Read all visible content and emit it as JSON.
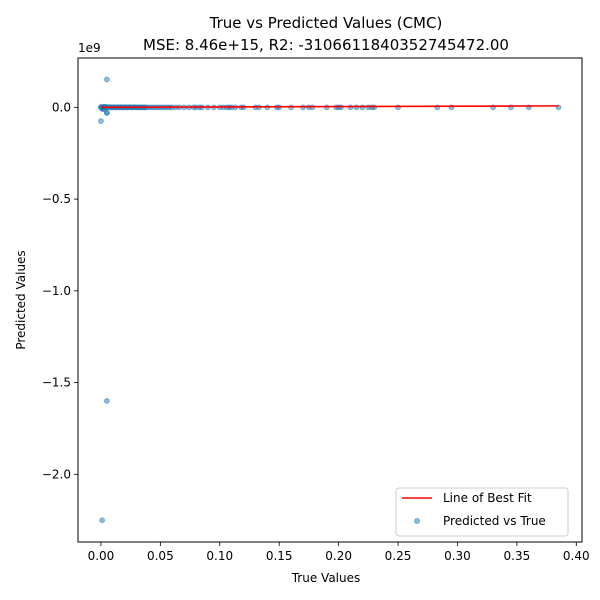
{
  "chart_data": {
    "type": "scatter",
    "title_line1": "True vs Predicted Values (CMC)",
    "title_line2": "MSE: 8.46e+15, R2: -3106611840352745472.00",
    "xlabel": "True Values",
    "ylabel": "Predicted Values",
    "y_offset_label": "1e9",
    "xlim": [
      -0.0193,
      0.4048
    ],
    "ylim": [
      -2.3687,
      0.2689
    ],
    "x_ticks": [
      0.0,
      0.05,
      0.1,
      0.15,
      0.2,
      0.25,
      0.3,
      0.35,
      0.4
    ],
    "x_tick_labels": [
      "0.00",
      "0.05",
      "0.10",
      "0.15",
      "0.20",
      "0.25",
      "0.30",
      "0.35",
      "0.40"
    ],
    "y_ticks": [
      0.0,
      -0.5,
      -1.0,
      -1.5,
      -2.0
    ],
    "y_tick_labels": [
      "0.0",
      "−0.5",
      "−1.0",
      "−1.5",
      "−2.0"
    ],
    "grid": false,
    "legend_position": "lower-right",
    "colors": {
      "points": "#1f77b4",
      "fit_line": "#ff0000"
    },
    "series": [
      {
        "name": "Predicted vs True",
        "kind": "scatter",
        "x": [
          0.0,
          0.0,
          0.001,
          0.002,
          0.003,
          0.004,
          0.005,
          0.005,
          0.005,
          0.001,
          0.0,
          0.002,
          0.003,
          0.004,
          0.006,
          0.007,
          0.008,
          0.009,
          0.01,
          0.011,
          0.012,
          0.013,
          0.014,
          0.015,
          0.016,
          0.017,
          0.018,
          0.019,
          0.02,
          0.021,
          0.022,
          0.023,
          0.024,
          0.025,
          0.026,
          0.027,
          0.028,
          0.029,
          0.03,
          0.031,
          0.032,
          0.033,
          0.034,
          0.035,
          0.036,
          0.037,
          0.038,
          0.04,
          0.042,
          0.044,
          0.046,
          0.048,
          0.05,
          0.052,
          0.054,
          0.056,
          0.058,
          0.06,
          0.063,
          0.066,
          0.07,
          0.074,
          0.078,
          0.08,
          0.083,
          0.085,
          0.09,
          0.095,
          0.1,
          0.103,
          0.106,
          0.108,
          0.11,
          0.113,
          0.118,
          0.12,
          0.13,
          0.133,
          0.14,
          0.148,
          0.15,
          0.16,
          0.17,
          0.175,
          0.178,
          0.19,
          0.198,
          0.2,
          0.202,
          0.21,
          0.215,
          0.22,
          0.225,
          0.228,
          0.23,
          0.25,
          0.283,
          0.295,
          0.33,
          0.345,
          0.36,
          0.385
        ],
        "y": [
          0.0,
          0.002,
          -0.003,
          0.004,
          -0.001,
          0.003,
          0.152,
          -0.03,
          -0.03,
          -0.008,
          -0.075,
          -0.01,
          0.002,
          -0.002,
          0.001,
          0.0,
          0.002,
          -0.001,
          0.0,
          0.001,
          0.0,
          -0.001,
          0.001,
          0.0,
          0.0,
          0.001,
          0.0,
          -0.001,
          0.001,
          0.0,
          0.0,
          0.0,
          0.001,
          0.0,
          0.0,
          0.0,
          0.001,
          0.0,
          0.0,
          0.0,
          0.0,
          0.0,
          0.0,
          0.0,
          0.0,
          0.0,
          0.0,
          0.0,
          0.0,
          0.0,
          0.0,
          0.0,
          0.0,
          0.0,
          0.0,
          0.0,
          0.0,
          0.0,
          0.0,
          0.0,
          0.0,
          0.0,
          0.0,
          0.0,
          0.0,
          0.0,
          0.0,
          0.0,
          0.0,
          0.0,
          0.0,
          0.0,
          0.0,
          0.0,
          0.0,
          0.0,
          0.0,
          0.0,
          0.0,
          0.0,
          0.0,
          0.0,
          0.0,
          0.0,
          0.0,
          0.0,
          0.0,
          0.0,
          0.0,
          0.0,
          0.0,
          0.0,
          0.0,
          0.0,
          0.0,
          0.0,
          0.0,
          0.0,
          0.0,
          0.0,
          0.0,
          0.0
        ],
        "outliers_x": [
          0.005,
          0.001
        ],
        "outliers_y": [
          -1.6,
          -2.25
        ]
      },
      {
        "name": "Line of Best Fit",
        "kind": "line",
        "x": [
          0.0,
          0.385
        ],
        "y": [
          -0.0,
          0.008
        ]
      }
    ]
  }
}
